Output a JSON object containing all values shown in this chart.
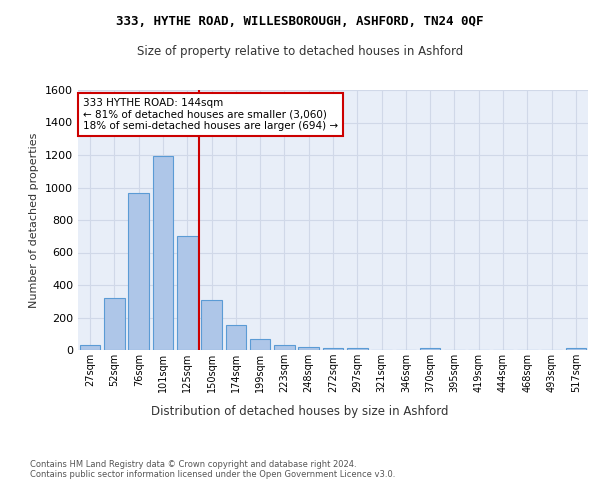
{
  "title1": "333, HYTHE ROAD, WILLESBOROUGH, ASHFORD, TN24 0QF",
  "title2": "Size of property relative to detached houses in Ashford",
  "xlabel": "Distribution of detached houses by size in Ashford",
  "ylabel": "Number of detached properties",
  "categories": [
    "27sqm",
    "52sqm",
    "76sqm",
    "101sqm",
    "125sqm",
    "150sqm",
    "174sqm",
    "199sqm",
    "223sqm",
    "248sqm",
    "272sqm",
    "297sqm",
    "321sqm",
    "346sqm",
    "370sqm",
    "395sqm",
    "419sqm",
    "444sqm",
    "468sqm",
    "493sqm",
    "517sqm"
  ],
  "values": [
    30,
    320,
    965,
    1195,
    700,
    305,
    155,
    70,
    28,
    18,
    15,
    10,
    0,
    0,
    12,
    0,
    0,
    0,
    0,
    0,
    12
  ],
  "bar_color": "#aec6e8",
  "bar_edge_color": "#5b9bd5",
  "vline_color": "#cc0000",
  "annotation_text": "333 HYTHE ROAD: 144sqm\n← 81% of detached houses are smaller (3,060)\n18% of semi-detached houses are larger (694) →",
  "annotation_box_color": "#ffffff",
  "annotation_box_edge": "#cc0000",
  "ylim": [
    0,
    1600
  ],
  "yticks": [
    0,
    200,
    400,
    600,
    800,
    1000,
    1200,
    1400,
    1600
  ],
  "grid_color": "#d0d8e8",
  "bg_color": "#e8eef8",
  "footer": "Contains HM Land Registry data © Crown copyright and database right 2024.\nContains public sector information licensed under the Open Government Licence v3.0."
}
